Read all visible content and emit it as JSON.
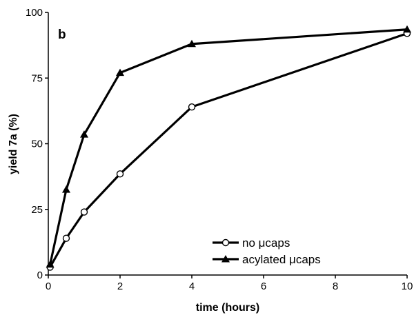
{
  "chart_data": {
    "type": "line",
    "panel_label": "b",
    "xlabel": "time (hours)",
    "ylabel": "yield 7a (%)",
    "xlim": [
      0,
      10
    ],
    "ylim": [
      0,
      100
    ],
    "x_ticks": [
      0,
      2,
      4,
      6,
      8,
      10
    ],
    "y_ticks": [
      0,
      25,
      50,
      75,
      100
    ],
    "grid": false,
    "legend_position": "bottom-right",
    "series": [
      {
        "name": "no μcaps",
        "marker": "open-circle",
        "color": "#000000",
        "x": [
          0.05,
          0.5,
          1,
          2,
          4,
          10
        ],
        "y": [
          3,
          14,
          24,
          38.5,
          64,
          92
        ]
      },
      {
        "name": "acylated μcaps",
        "marker": "filled-triangle",
        "color": "#000000",
        "x": [
          0.05,
          0.5,
          1,
          2,
          4,
          10
        ],
        "y": [
          4,
          32.5,
          53.5,
          77,
          88,
          93.5
        ]
      }
    ]
  }
}
